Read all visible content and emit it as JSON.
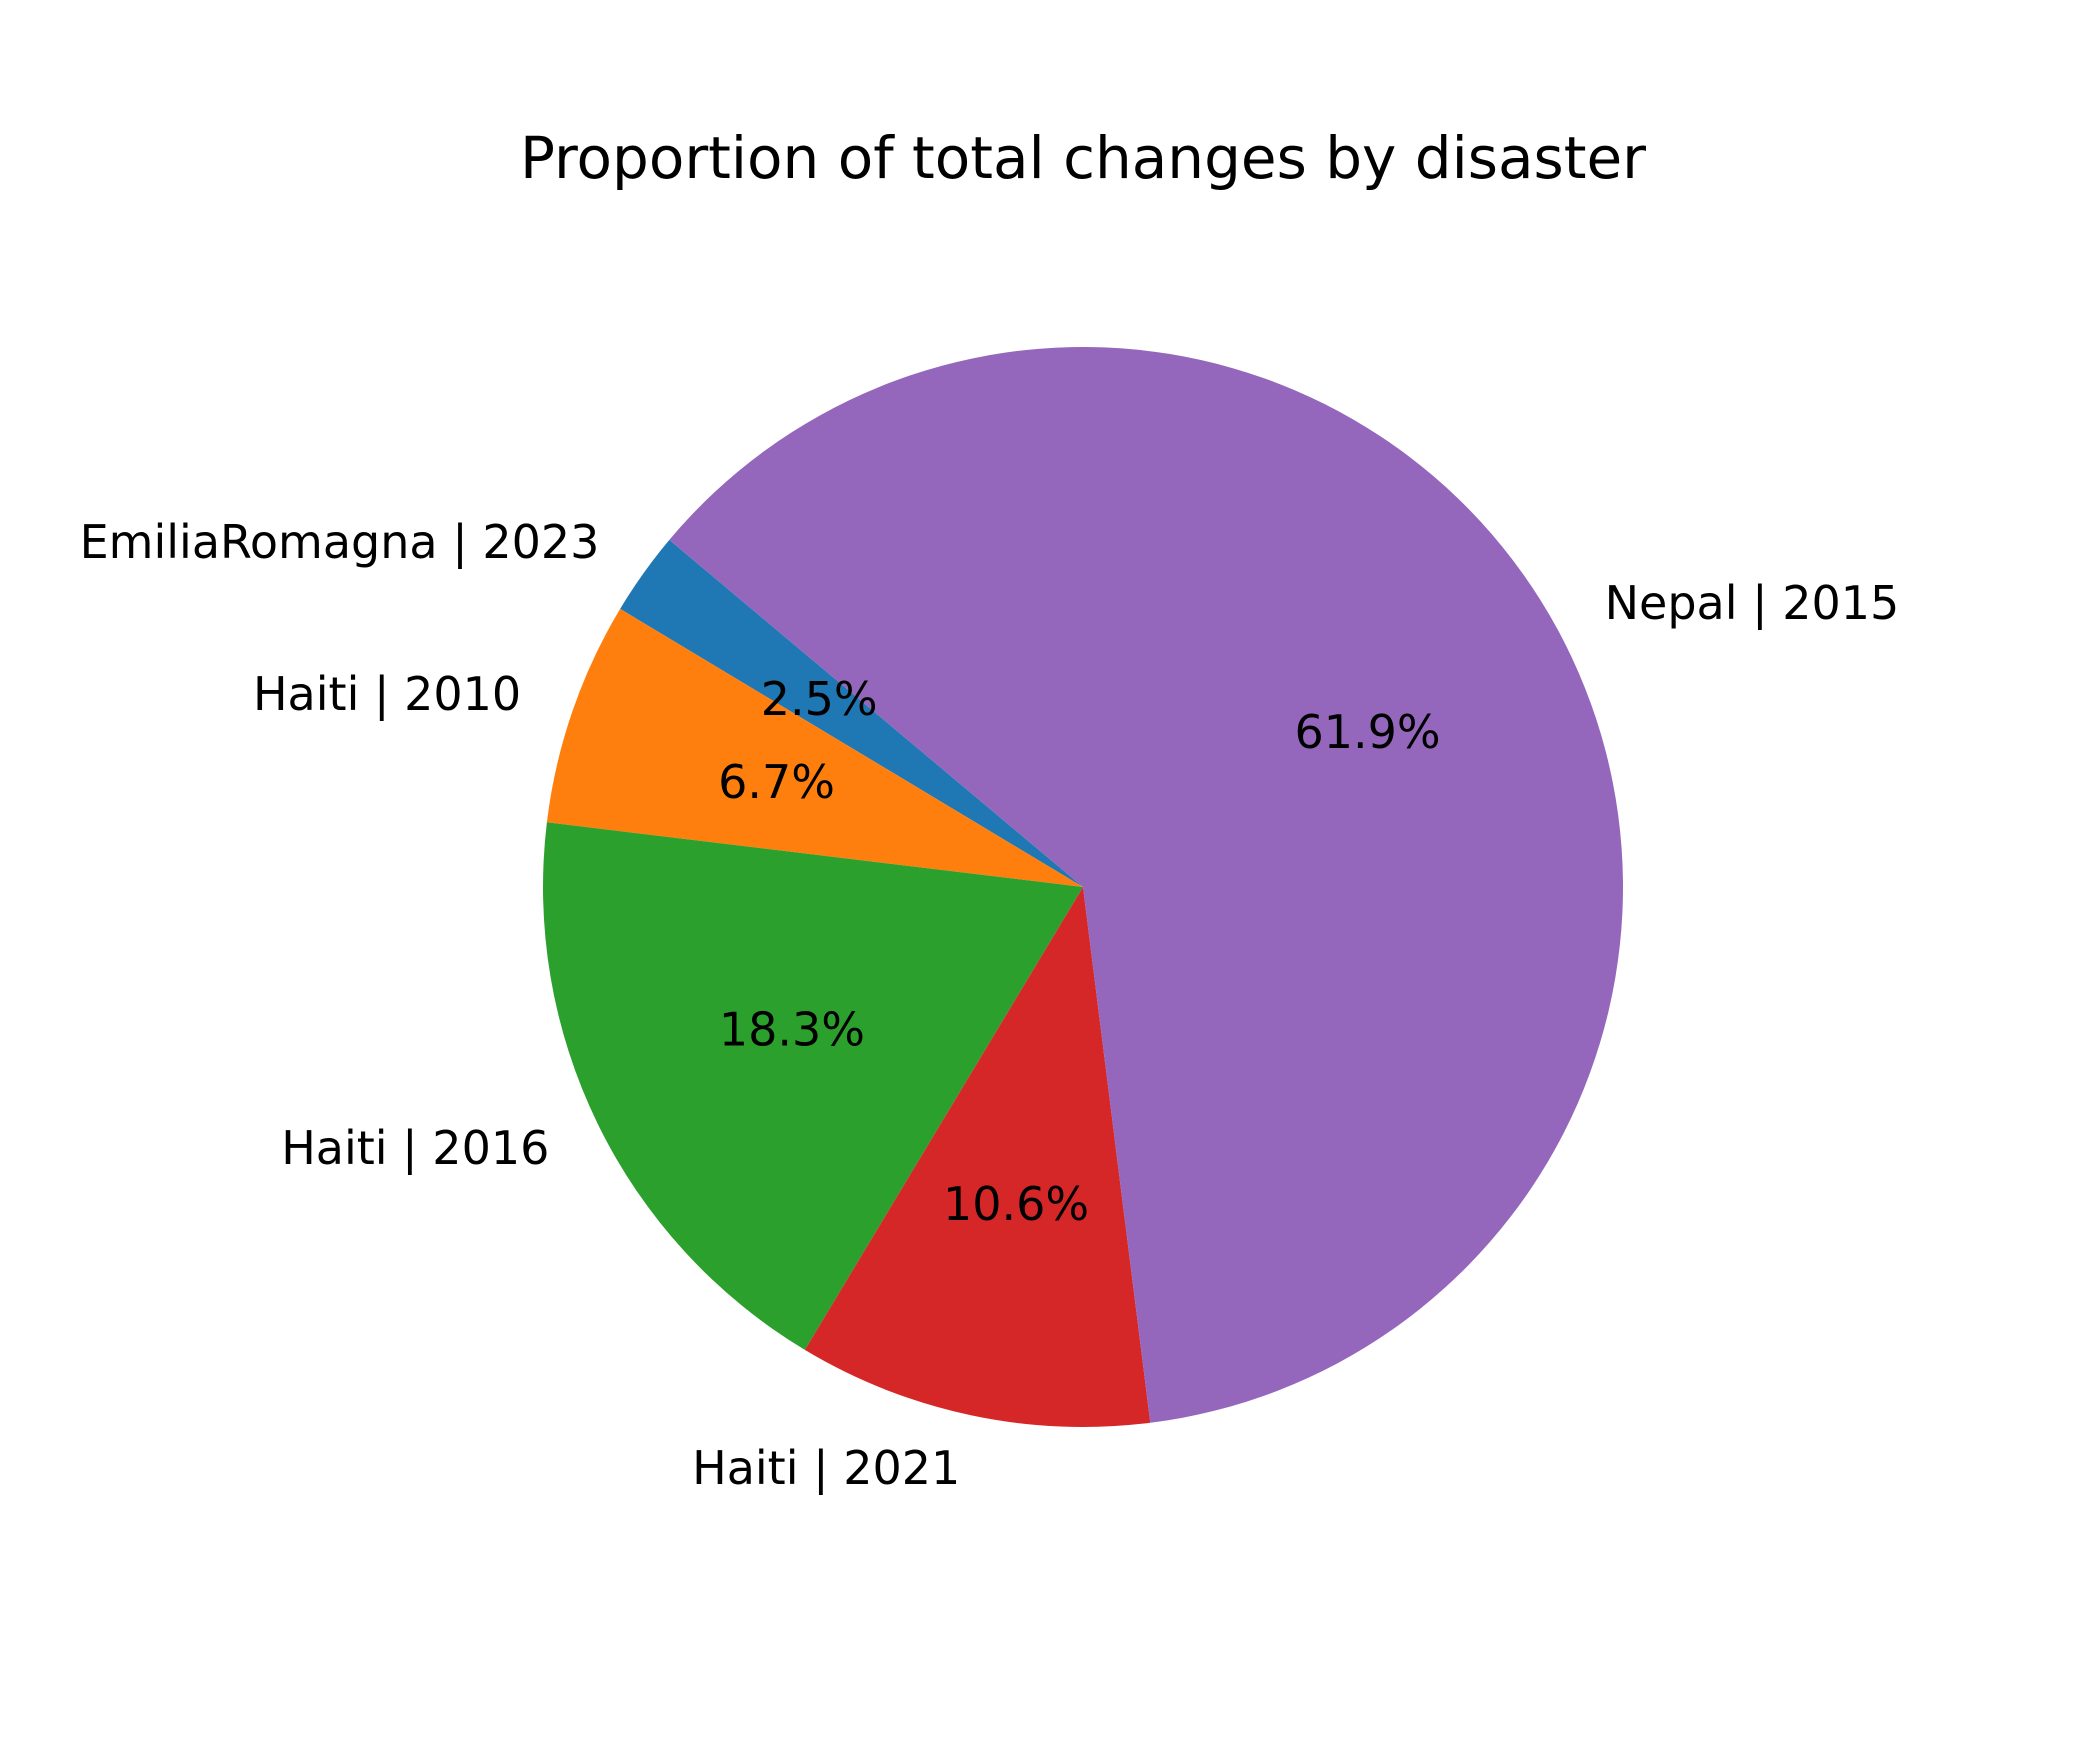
{
  "chart_data": {
    "type": "pie",
    "title": "Proportion of total changes by disaster",
    "start_angle_deg": 140,
    "direction": "counterclockwise",
    "slices": [
      {
        "label": "EmiliaRomagna | 2023",
        "value": 2.5,
        "pct_text": "2.5%",
        "color": "#1f77b4"
      },
      {
        "label": "Haiti | 2010",
        "value": 6.7,
        "pct_text": "6.7%",
        "color": "#ff7f0e"
      },
      {
        "label": "Haiti | 2016",
        "value": 18.3,
        "pct_text": "18.3%",
        "color": "#2ca02c"
      },
      {
        "label": "Haiti | 2021",
        "value": 10.6,
        "pct_text": "10.6%",
        "color": "#d62728"
      },
      {
        "label": "Nepal | 2015",
        "value": 61.9,
        "pct_text": "61.9%",
        "color": "#9467bd"
      }
    ]
  }
}
